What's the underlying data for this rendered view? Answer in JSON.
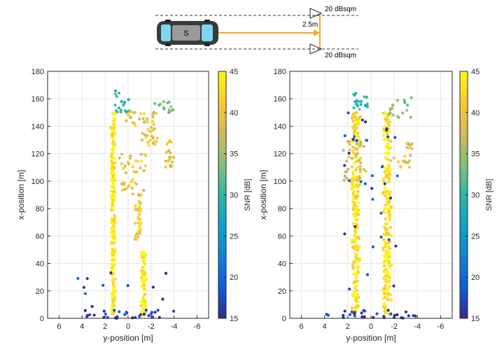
{
  "diagram": {
    "vehicle_label": "S",
    "range_label": "2.5m",
    "target_top_label": "20 dBsqm",
    "target_bottom_label": "20 dBsqm",
    "colors": {
      "arrow": "#f5a623",
      "car_body": "#3a3a3a",
      "car_window": "#7fd6f0"
    }
  },
  "chart_data": [
    {
      "type": "scatter",
      "title": "",
      "xlabel": "y-position [m]",
      "ylabel": "x-position [m]",
      "xlim": [
        7,
        -7
      ],
      "ylim": [
        0,
        180
      ],
      "xticks": [
        6,
        4,
        2,
        0,
        -2,
        -4,
        -6
      ],
      "yticks": [
        0,
        20,
        40,
        60,
        80,
        100,
        120,
        140,
        160,
        180
      ],
      "grid": true,
      "colorbar": {
        "label": "SNR [dB]",
        "range": [
          15,
          45
        ],
        "ticks": [
          15,
          20,
          25,
          30,
          35,
          40,
          45
        ],
        "colormap": "parula"
      },
      "clusters": [
        {
          "name": "",
          "x": [
            1.2,
            1.4
          ],
          "y": [
            2,
            150
          ],
          "snr": 44,
          "density": 0.9
        },
        {
          "name": "",
          "x": [
            -1.2,
            -1.5
          ],
          "y": [
            2,
            50
          ],
          "snr": 44,
          "density": 0.9
        },
        {
          "name": "",
          "x": [
            -0.6,
            -1.1
          ],
          "y": [
            55,
            90
          ],
          "snr": 41,
          "density": 0.5
        },
        {
          "name": "",
          "x": [
            0.8,
            -1.6
          ],
          "y": [
            90,
            120
          ],
          "snr": 40,
          "density": 0.6
        },
        {
          "name": "",
          "x": [
            -1.2,
            -2.5
          ],
          "y": [
            125,
            150
          ],
          "snr": 40,
          "density": 0.6
        },
        {
          "name": "",
          "x": [
            -3.2,
            -4.0
          ],
          "y": [
            110,
            130
          ],
          "snr": 39,
          "density": 0.4
        },
        {
          "name": "",
          "x": [
            0.2,
            -1.2
          ],
          "y": [
            140,
            152
          ],
          "snr": 40,
          "density": 0.4
        },
        {
          "name": "",
          "x": [
            1.2,
            0.0
          ],
          "y": [
            150,
            166
          ],
          "snr": 30,
          "density": 0.4
        },
        {
          "name": "",
          "x": [
            -2.0,
            -4.0
          ],
          "y": [
            150,
            160
          ],
          "snr": 34,
          "density": 0.4
        },
        {
          "name": "",
          "x": [
            4.2,
            -4.2
          ],
          "y": [
            0,
            6
          ],
          "snr": 16,
          "density": 1.0
        },
        {
          "name": "",
          "x": [
            4.5,
            -4.5
          ],
          "y": [
            0,
            40
          ],
          "snr": 17,
          "density": 0.15
        }
      ]
    },
    {
      "type": "scatter",
      "title": "",
      "xlabel": "y-position [m]",
      "ylabel": "x-position [m]",
      "xlim": [
        7,
        -7
      ],
      "ylim": [
        0,
        180
      ],
      "xticks": [
        6,
        4,
        2,
        0,
        -2,
        -4,
        -6
      ],
      "yticks": [
        0,
        20,
        40,
        60,
        80,
        100,
        120,
        140,
        160,
        180
      ],
      "grid": true,
      "colorbar": {
        "label": "SNR [dB]",
        "range": [
          15,
          45
        ],
        "ticks": [
          15,
          20,
          25,
          30,
          35,
          40,
          45
        ],
        "colormap": "parula"
      },
      "clusters": [
        {
          "name": "",
          "x": [
            1.0,
            1.6
          ],
          "y": [
            2,
            150
          ],
          "snr": 43,
          "density": 0.9
        },
        {
          "name": "",
          "x": [
            -1.1,
            -1.7
          ],
          "y": [
            2,
            150
          ],
          "snr": 43,
          "density": 0.9
        },
        {
          "name": "",
          "x": [
            0.5,
            2.5
          ],
          "y": [
            100,
            130
          ],
          "snr": 38,
          "density": 0.5
        },
        {
          "name": "",
          "x": [
            -2.0,
            -3.5
          ],
          "y": [
            110,
            130
          ],
          "snr": 39,
          "density": 0.4
        },
        {
          "name": "",
          "x": [
            1.5,
            0.3
          ],
          "y": [
            150,
            166
          ],
          "snr": 30,
          "density": 0.4
        },
        {
          "name": "",
          "x": [
            -1.5,
            -3.5
          ],
          "y": [
            145,
            162
          ],
          "snr": 34,
          "density": 0.4
        },
        {
          "name": "",
          "x": [
            4.2,
            -4.2
          ],
          "y": [
            0,
            6
          ],
          "snr": 16,
          "density": 1.0
        },
        {
          "name": "",
          "x": [
            2.5,
            -2.5
          ],
          "y": [
            20,
            150
          ],
          "snr": 18,
          "density": 0.15
        }
      ]
    }
  ]
}
